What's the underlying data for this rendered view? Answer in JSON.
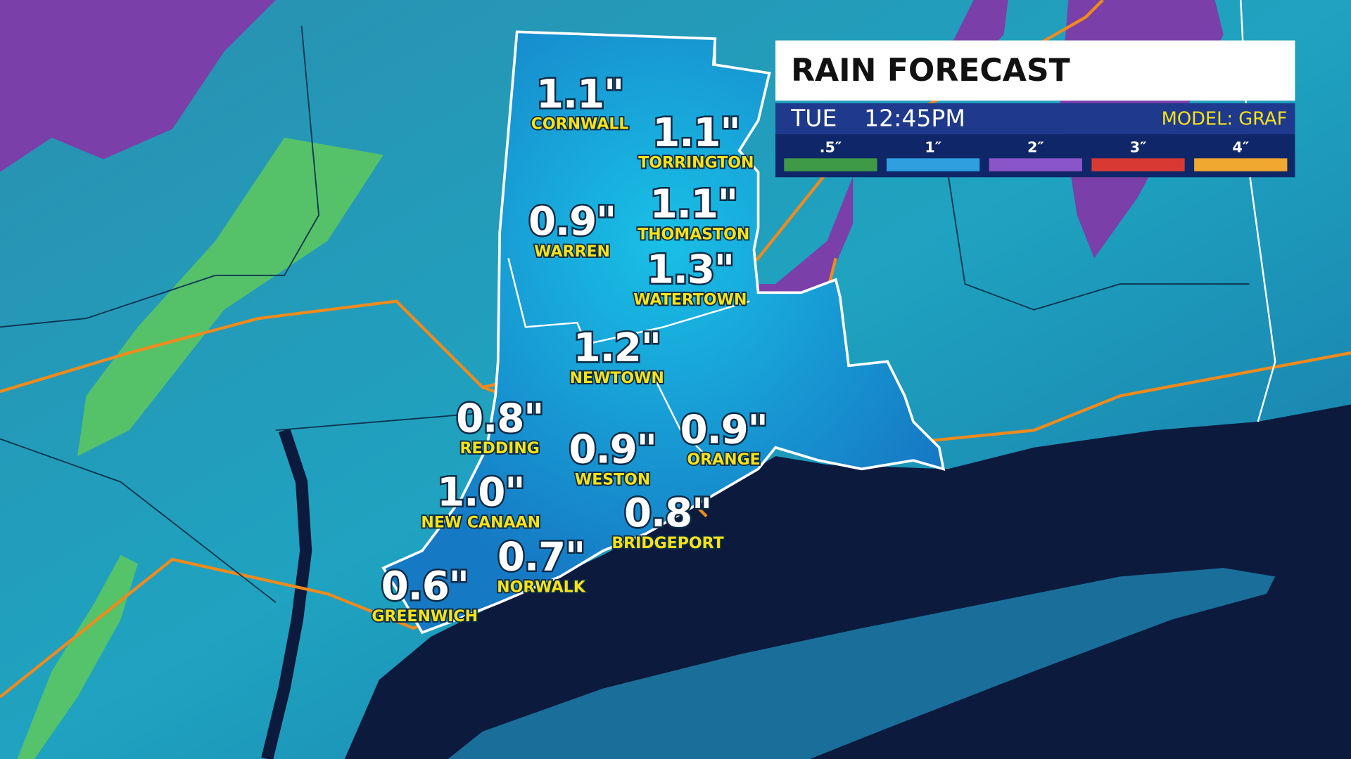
{
  "header": {
    "title": "RAIN FORECAST",
    "day": "TUE",
    "time": "12:45PM",
    "model": "MODEL: GRAF"
  },
  "legend": [
    {
      "label": ".5″",
      "color": "#3f9a47"
    },
    {
      "label": "1″",
      "color": "#2f9fe0"
    },
    {
      "label": "2″",
      "color": "#8a55c8"
    },
    {
      "label": "3″",
      "color": "#d83a33"
    },
    {
      "label": "4″",
      "color": "#f0a830"
    }
  ],
  "towns": [
    {
      "name": "CORNWALL",
      "amount": "1.1\""
    },
    {
      "name": "TORRINGTON",
      "amount": "1.1\""
    },
    {
      "name": "WARREN",
      "amount": "0.9\""
    },
    {
      "name": "THOMASTON",
      "amount": "1.1\""
    },
    {
      "name": "WATERTOWN",
      "amount": "1.3\""
    },
    {
      "name": "NEWTOWN",
      "amount": "1.2\""
    },
    {
      "name": "REDDING",
      "amount": "0.8\""
    },
    {
      "name": "WESTON",
      "amount": "0.9\""
    },
    {
      "name": "ORANGE",
      "amount": "0.9\""
    },
    {
      "name": "NEW CANAAN",
      "amount": "1.0\""
    },
    {
      "name": "BRIDGEPORT",
      "amount": "0.8\""
    },
    {
      "name": "NORWALK",
      "amount": "0.7\""
    },
    {
      "name": "GREENWICH",
      "amount": "0.6\""
    }
  ]
}
